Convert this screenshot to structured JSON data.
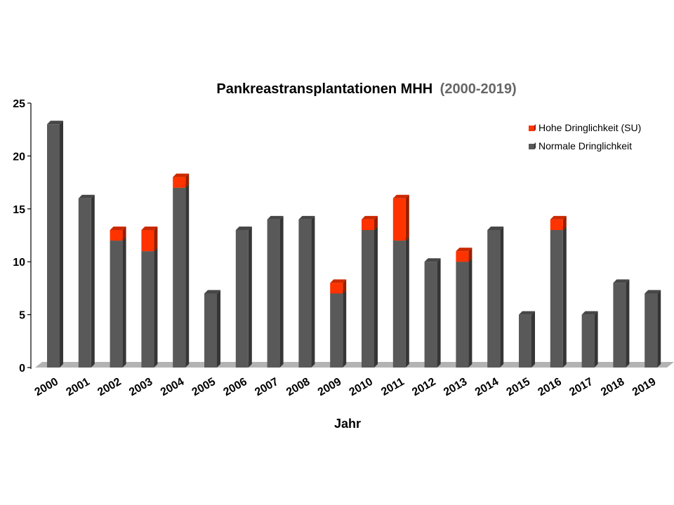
{
  "chart_data": {
    "type": "bar",
    "stacked": true,
    "title": "Pankreastransplantationen MHH",
    "title_suffix": "(2000-2019)",
    "xlabel": "Jahr",
    "ylabel": "",
    "ylim": [
      0,
      25
    ],
    "yticks": [
      "0",
      "5",
      "10",
      "15",
      "20",
      "25"
    ],
    "categories": [
      "2000",
      "2001",
      "2002",
      "2003",
      "2004",
      "2005",
      "2006",
      "2007",
      "2008",
      "2009",
      "2010",
      "2011",
      "2012",
      "2013",
      "2014",
      "2015",
      "2016",
      "2017",
      "2018",
      "2019"
    ],
    "series": [
      {
        "name": "Normale Dringlichkeit",
        "color": "#595959",
        "values": [
          23,
          16,
          12,
          11,
          17,
          7,
          13,
          14,
          14,
          7,
          13,
          12,
          10,
          10,
          13,
          5,
          13,
          5,
          8,
          7
        ]
      },
      {
        "name": "Hohe Dringlichkeit (SU)",
        "color": "#ff3300",
        "values": [
          0,
          0,
          1,
          2,
          1,
          0,
          0,
          0,
          0,
          1,
          1,
          4,
          0,
          1,
          0,
          0,
          1,
          0,
          0,
          0
        ]
      }
    ],
    "legend_order": [
      "Hohe Dringlichkeit (SU)",
      "Normale Dringlichkeit"
    ],
    "legend": "top-right",
    "grid": false
  }
}
